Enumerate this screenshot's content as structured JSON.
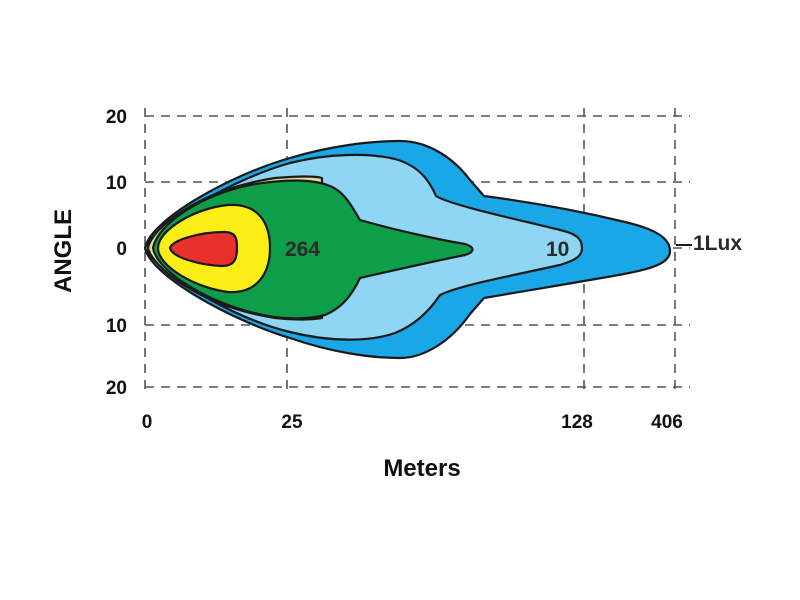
{
  "chart_data": {
    "type": "contour",
    "title": "",
    "xlabel": "Meters",
    "ylabel": "ANGLE",
    "x_ticks": [
      "0",
      "25",
      "128",
      "406"
    ],
    "y_ticks": [
      "20",
      "10",
      "0",
      "10",
      "20"
    ],
    "grid": true,
    "zones": [
      {
        "name": "1Lux",
        "color": "#1aa7e8"
      },
      {
        "name": "10",
        "color": "#8fd6f5"
      },
      {
        "name": "",
        "color": "#e4dc9a"
      },
      {
        "name": "264",
        "color": "#0e9e4a"
      },
      {
        "name": "",
        "color": "#fbee16"
      },
      {
        "name": "",
        "color": "#e8302c"
      }
    ],
    "contour_labels": [
      "264",
      "10",
      "1Lux"
    ]
  }
}
